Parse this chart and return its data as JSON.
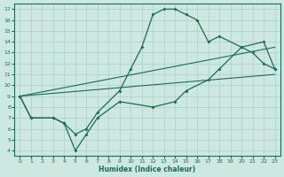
{
  "xlabel": "Humidex (Indice chaleur)",
  "bg_color": "#cce8e0",
  "line_color": "#1a6b5a",
  "grid_color": "#aacfc8",
  "xlim": [
    -0.5,
    23.5
  ],
  "ylim": [
    3.5,
    17.5
  ],
  "xticks": [
    0,
    1,
    2,
    3,
    4,
    5,
    6,
    7,
    8,
    9,
    10,
    11,
    12,
    13,
    14,
    15,
    16,
    17,
    18,
    19,
    20,
    21,
    22,
    23
  ],
  "yticks": [
    4,
    5,
    6,
    7,
    8,
    9,
    10,
    11,
    12,
    13,
    14,
    15,
    16,
    17
  ],
  "line1_x": [
    0,
    1,
    3,
    4,
    5,
    6,
    7,
    9,
    10,
    11,
    12,
    13,
    14,
    15,
    16,
    17,
    18,
    20,
    21,
    22,
    23
  ],
  "line1_y": [
    9,
    7,
    7,
    6.5,
    5.5,
    6,
    7.5,
    9.5,
    11.5,
    13.5,
    16.5,
    17,
    17,
    16.5,
    16,
    14,
    14.5,
    13.5,
    13,
    12,
    11.5
  ],
  "line2_x": [
    0,
    1,
    3,
    4,
    5,
    6,
    7,
    9,
    12,
    14,
    15,
    17,
    18,
    20,
    22,
    23
  ],
  "line2_y": [
    9,
    7,
    7,
    6.5,
    4,
    5.5,
    7,
    8.5,
    8,
    8.5,
    9.5,
    10.5,
    11.5,
    13.5,
    14,
    11.5
  ],
  "line3_x": [
    0,
    23
  ],
  "line3_y": [
    9,
    13.5
  ],
  "line4_x": [
    0,
    23
  ],
  "line4_y": [
    9,
    11
  ]
}
